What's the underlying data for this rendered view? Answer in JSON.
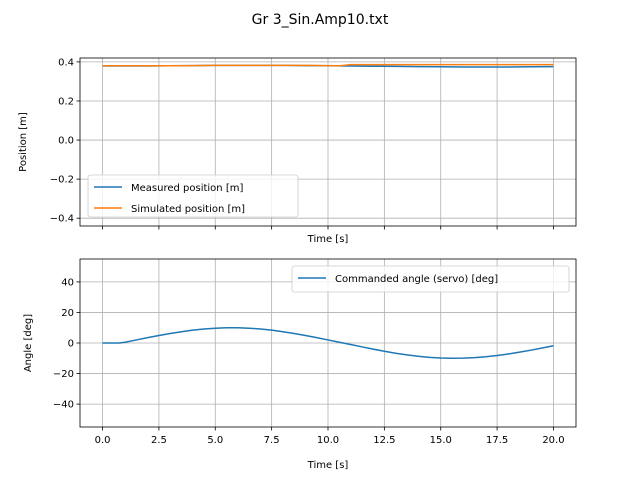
{
  "figure": {
    "title": "Gr 3_Sin.Amp10.txt"
  },
  "chart_data": [
    {
      "type": "line",
      "xlabel": "Time [s]",
      "ylabel": "Position [m]",
      "xlim": [
        -1.0,
        21.0
      ],
      "ylim": [
        -0.44,
        0.42
      ],
      "xticks": [
        0.0,
        2.5,
        5.0,
        7.5,
        10.0,
        12.5,
        15.0,
        17.5,
        20.0
      ],
      "xtick_labels_visible": false,
      "yticks": [
        -0.4,
        -0.2,
        0.0,
        0.2,
        0.4
      ],
      "ytick_labels": [
        "−0.4",
        "−0.2",
        "0.0",
        "0.2",
        "0.4"
      ],
      "grid": true,
      "legend": "lower-left",
      "series": [
        {
          "name": "Measured position [m]",
          "color": "#1f77b4",
          "x": [
            0.0,
            1.0,
            2.0,
            3.0,
            4.0,
            5.0,
            6.0,
            7.0,
            8.0,
            9.0,
            10.0,
            11.0,
            12.0,
            13.0,
            14.0,
            15.0,
            16.0,
            17.0,
            18.0,
            19.0,
            20.0
          ],
          "y": [
            0.379,
            0.379,
            0.379,
            0.38,
            0.381,
            0.382,
            0.382,
            0.382,
            0.382,
            0.381,
            0.38,
            0.379,
            0.378,
            0.377,
            0.376,
            0.375,
            0.374,
            0.374,
            0.374,
            0.375,
            0.376
          ]
        },
        {
          "name": "Simulated position [m]",
          "color": "#ff7f0e",
          "x": [
            0.0,
            1.0,
            2.0,
            3.0,
            4.0,
            5.0,
            6.0,
            7.0,
            8.0,
            9.0,
            10.0,
            10.5,
            11.0,
            12.0,
            13.0,
            14.0,
            15.0,
            16.0,
            17.0,
            18.0,
            19.0,
            20.0
          ],
          "y": [
            0.38,
            0.38,
            0.38,
            0.38,
            0.381,
            0.382,
            0.382,
            0.382,
            0.382,
            0.382,
            0.381,
            0.38,
            0.386,
            0.386,
            0.386,
            0.386,
            0.386,
            0.386,
            0.386,
            0.386,
            0.386,
            0.386
          ]
        }
      ]
    },
    {
      "type": "line",
      "xlabel": "Time [s]",
      "ylabel": "Angle [deg]",
      "xlim": [
        -1.0,
        21.0
      ],
      "ylim": [
        -55,
        55
      ],
      "xticks": [
        0.0,
        2.5,
        5.0,
        7.5,
        10.0,
        12.5,
        15.0,
        17.5,
        20.0
      ],
      "xtick_labels": [
        "0.0",
        "2.5",
        "5.0",
        "7.5",
        "10.0",
        "12.5",
        "15.0",
        "17.5",
        "20.0"
      ],
      "yticks": [
        -40,
        -20,
        0,
        20,
        40
      ],
      "ytick_labels": [
        "−40",
        "−20",
        "0",
        "20",
        "40"
      ],
      "grid": true,
      "legend": "upper-right",
      "series": [
        {
          "name": "Commanded angle (servo) [deg]",
          "color": "#1f77b4",
          "x": [
            0.0,
            0.5,
            0.75,
            1.0,
            1.5,
            2.0,
            2.5,
            3.0,
            3.5,
            4.0,
            4.5,
            5.0,
            5.5,
            6.0,
            6.5,
            7.0,
            7.5,
            8.0,
            8.5,
            9.0,
            9.5,
            10.0,
            10.5,
            11.0,
            11.5,
            12.0,
            12.5,
            13.0,
            13.5,
            14.0,
            14.5,
            15.0,
            15.5,
            16.0,
            16.5,
            17.0,
            17.5,
            18.0,
            18.5,
            19.0,
            19.5,
            20.0
          ],
          "y": [
            0.0,
            0.0,
            0.0,
            0.5,
            2.0,
            3.5,
            4.9,
            6.2,
            7.4,
            8.4,
            9.2,
            9.7,
            10.0,
            10.0,
            9.7,
            9.2,
            8.4,
            7.4,
            6.2,
            4.9,
            3.5,
            2.0,
            0.5,
            -1.0,
            -2.5,
            -4.0,
            -5.4,
            -6.7,
            -7.8,
            -8.7,
            -9.4,
            -9.8,
            -10.0,
            -9.9,
            -9.6,
            -9.0,
            -8.2,
            -7.2,
            -6.0,
            -4.7,
            -3.3,
            -1.8
          ]
        }
      ]
    }
  ]
}
